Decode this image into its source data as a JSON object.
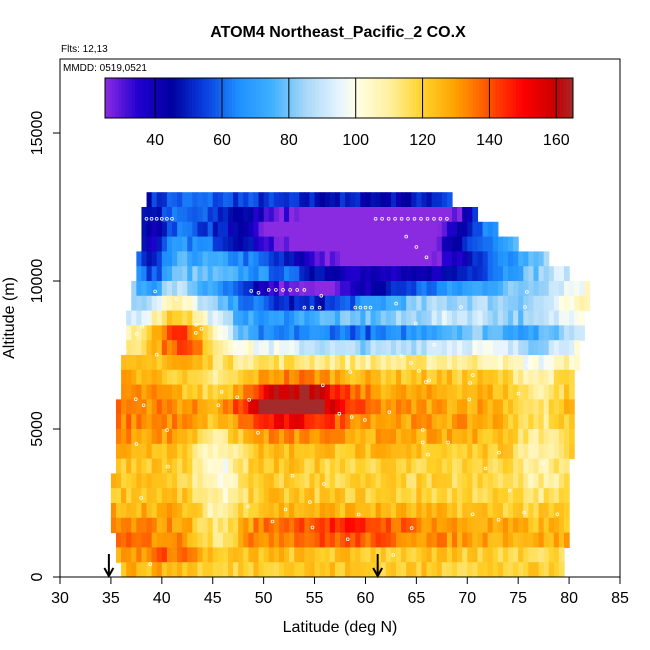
{
  "chart_data": {
    "type": "heatmap",
    "title": "ATOM4 Northeast_Pacific_2 CO.X",
    "flights_note": "Flts: 12,13",
    "date_note": "MMDD: 0519,0521",
    "xlabel": "Latitude (deg N)",
    "ylabel": "Altitude (m)",
    "xlim": [
      30,
      85
    ],
    "ylim": [
      0,
      17500
    ],
    "x_ticks": [
      "30",
      "35",
      "40",
      "45",
      "50",
      "55",
      "60",
      "65",
      "70",
      "75",
      "80",
      "85"
    ],
    "y_ticks": [
      "0",
      "5000",
      "10000",
      "15000"
    ],
    "colorbar": {
      "min": 25,
      "max": 165,
      "ticks": [
        "40",
        "60",
        "80",
        "100",
        "120",
        "140",
        "160"
      ],
      "tick_values": [
        40,
        60,
        80,
        100,
        120,
        140,
        160
      ],
      "stops": [
        {
          "v": 25,
          "color": "#8a2be2"
        },
        {
          "v": 35,
          "color": "#2200d0"
        },
        {
          "v": 45,
          "color": "#0000a0"
        },
        {
          "v": 55,
          "color": "#0a40e0"
        },
        {
          "v": 65,
          "color": "#1e90ff"
        },
        {
          "v": 75,
          "color": "#40b0ff"
        },
        {
          "v": 85,
          "color": "#a8d8f8"
        },
        {
          "v": 95,
          "color": "#e6f4ff"
        },
        {
          "v": 100,
          "color": "#ffffe8"
        },
        {
          "v": 110,
          "color": "#fff0a0"
        },
        {
          "v": 120,
          "color": "#ffd22a"
        },
        {
          "v": 130,
          "color": "#ffa000"
        },
        {
          "v": 140,
          "color": "#ff5000"
        },
        {
          "v": 150,
          "color": "#ff0000"
        },
        {
          "v": 160,
          "color": "#c80000"
        },
        {
          "v": 165,
          "color": "#a52a2a"
        }
      ]
    },
    "row_extents": [
      {
        "alt": 12500,
        "lat0": 38.5,
        "lat1": 68.5
      },
      {
        "alt": 12000,
        "lat0": 38.0,
        "lat1": 71.0
      },
      {
        "alt": 11500,
        "lat0": 38.0,
        "lat1": 73.0
      },
      {
        "alt": 11000,
        "lat0": 38.0,
        "lat1": 75.0
      },
      {
        "alt": 10500,
        "lat0": 37.5,
        "lat1": 78.0
      },
      {
        "alt": 10000,
        "lat0": 37.5,
        "lat1": 80.0
      },
      {
        "alt": 9500,
        "lat0": 37.0,
        "lat1": 82.0
      },
      {
        "alt": 9000,
        "lat0": 37.0,
        "lat1": 82.0
      },
      {
        "alt": 8500,
        "lat0": 36.5,
        "lat1": 81.5
      },
      {
        "alt": 8000,
        "lat0": 36.5,
        "lat1": 81.5
      },
      {
        "alt": 7500,
        "lat0": 36.5,
        "lat1": 81.0
      },
      {
        "alt": 7000,
        "lat0": 36.0,
        "lat1": 81.0
      },
      {
        "alt": 6500,
        "lat0": 36.0,
        "lat1": 80.5
      },
      {
        "alt": 6000,
        "lat0": 36.0,
        "lat1": 80.5
      },
      {
        "alt": 5500,
        "lat0": 35.5,
        "lat1": 80.5
      },
      {
        "alt": 5000,
        "lat0": 35.5,
        "lat1": 80.5
      },
      {
        "alt": 4500,
        "lat0": 35.5,
        "lat1": 80.5
      },
      {
        "alt": 4000,
        "lat0": 35.5,
        "lat1": 80.5
      },
      {
        "alt": 3500,
        "lat0": 35.5,
        "lat1": 80.0
      },
      {
        "alt": 3000,
        "lat0": 35.0,
        "lat1": 80.0
      },
      {
        "alt": 2500,
        "lat0": 35.0,
        "lat1": 80.0
      },
      {
        "alt": 2000,
        "lat0": 35.0,
        "lat1": 80.0
      },
      {
        "alt": 1500,
        "lat0": 35.0,
        "lat1": 80.0
      },
      {
        "alt": 1000,
        "lat0": 35.5,
        "lat1": 80.0
      },
      {
        "alt": 500,
        "lat0": 35.5,
        "lat1": 79.5
      },
      {
        "alt": 0,
        "lat0": 36.0,
        "lat1": 79.5
      }
    ],
    "field_blobs": [
      {
        "lat": 55,
        "alt": 11800,
        "slat": 9,
        "salt": 900,
        "v": -55
      },
      {
        "lat": 65,
        "alt": 12200,
        "slat": 6,
        "salt": 500,
        "v": -70
      },
      {
        "lat": 62,
        "alt": 11000,
        "slat": 10,
        "salt": 900,
        "v": -55
      },
      {
        "lat": 54,
        "alt": 9600,
        "slat": 8,
        "salt": 500,
        "v": -65
      },
      {
        "lat": 68,
        "alt": 10200,
        "slat": 10,
        "salt": 1000,
        "v": -30
      },
      {
        "lat": 60,
        "alt": 8200,
        "slat": 10,
        "salt": 600,
        "v": -45
      },
      {
        "lat": 50,
        "alt": 8400,
        "slat": 4,
        "salt": 500,
        "v": -30
      },
      {
        "lat": 42,
        "alt": 8000,
        "slat": 3,
        "salt": 800,
        "v": 30
      },
      {
        "lat": 41,
        "alt": 9000,
        "slat": 3,
        "salt": 800,
        "v": 25
      },
      {
        "lat": 53,
        "alt": 5900,
        "slat": 5,
        "salt": 700,
        "v": 45
      },
      {
        "lat": 45,
        "alt": 6600,
        "slat": 4,
        "salt": 500,
        "v": -18
      },
      {
        "lat": 45.5,
        "alt": 4100,
        "slat": 2.5,
        "salt": 1500,
        "v": -22
      },
      {
        "lat": 45.5,
        "alt": 1500,
        "slat": 2.5,
        "salt": 1300,
        "v": -18
      },
      {
        "lat": 77,
        "alt": 5500,
        "slat": 2.5,
        "salt": 2500,
        "v": -15
      },
      {
        "lat": 76,
        "alt": 8500,
        "slat": 5,
        "salt": 1000,
        "v": -25
      },
      {
        "lat": 58,
        "alt": 1600,
        "slat": 8,
        "salt": 400,
        "v": 18
      },
      {
        "lat": 42,
        "alt": 700,
        "slat": 5,
        "salt": 300,
        "v": 15
      },
      {
        "lat": 39,
        "alt": 11000,
        "slat": 1.5,
        "salt": 1500,
        "v": -30
      }
    ],
    "arrows": [
      {
        "lat": 34.8,
        "alt": 0
      },
      {
        "lat": 61.2,
        "alt": 0
      }
    ]
  }
}
